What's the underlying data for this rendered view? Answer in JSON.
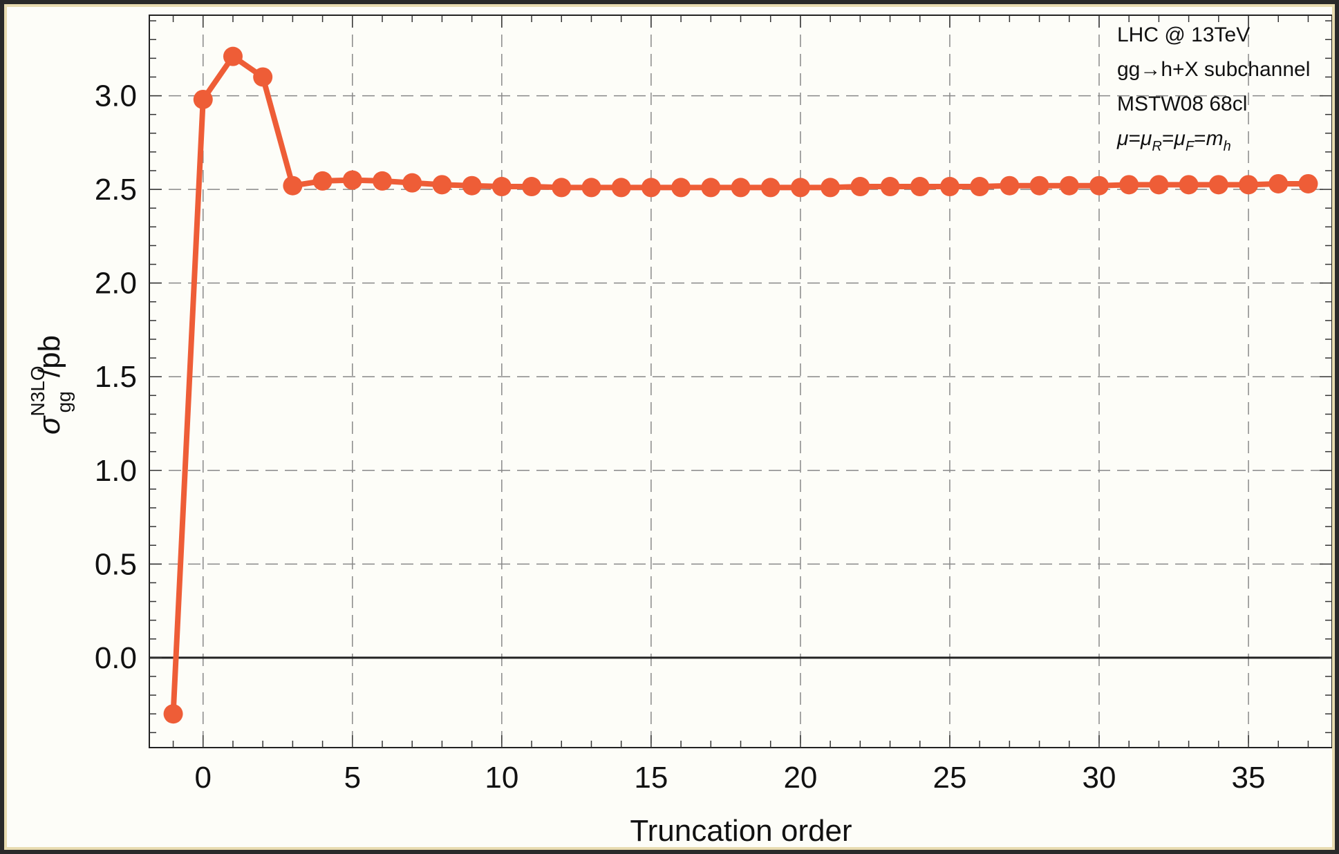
{
  "chart_data": {
    "type": "line",
    "xlabel": "Truncation order",
    "ylabel": {
      "main": "σ",
      "sup": "N3LO",
      "sub": "gg",
      "unit": "/pb"
    },
    "xlim": [
      -1.8,
      37.8
    ],
    "ylim": [
      -0.48,
      3.43
    ],
    "x_ticks": [
      0,
      5,
      10,
      15,
      20,
      25,
      30,
      35
    ],
    "y_ticks": [
      0.0,
      0.5,
      1.0,
      1.5,
      2.0,
      2.5,
      3.0
    ],
    "y_tick_labels": [
      "0.0",
      "0.5",
      "1.0",
      "1.5",
      "2.0",
      "2.5",
      "3.0"
    ],
    "grid": true,
    "series": [
      {
        "color": "#ee5d37",
        "x": [
          -1,
          0,
          1,
          2,
          3,
          4,
          5,
          6,
          7,
          8,
          9,
          10,
          11,
          12,
          13,
          14,
          15,
          16,
          17,
          18,
          19,
          20,
          21,
          22,
          23,
          24,
          25,
          26,
          27,
          28,
          29,
          30,
          31,
          32,
          33,
          34,
          35,
          36,
          37
        ],
        "y": [
          -0.3,
          2.98,
          3.21,
          3.1,
          2.52,
          2.545,
          2.55,
          2.545,
          2.535,
          2.525,
          2.52,
          2.515,
          2.515,
          2.51,
          2.51,
          2.51,
          2.51,
          2.51,
          2.51,
          2.51,
          2.51,
          2.51,
          2.51,
          2.515,
          2.515,
          2.515,
          2.515,
          2.515,
          2.52,
          2.52,
          2.52,
          2.52,
          2.525,
          2.525,
          2.525,
          2.525,
          2.525,
          2.53,
          2.53
        ]
      }
    ],
    "annotations": [
      "LHC @ 13TeV",
      "gg→h+X subchannel",
      "MSTW08 68cl"
    ],
    "scale_annotation": {
      "mu": "μ",
      "muR": "μ",
      "R": "R",
      "muF": "μ",
      "F": "F",
      "m": "m",
      "h": "h",
      "eq": "="
    }
  }
}
